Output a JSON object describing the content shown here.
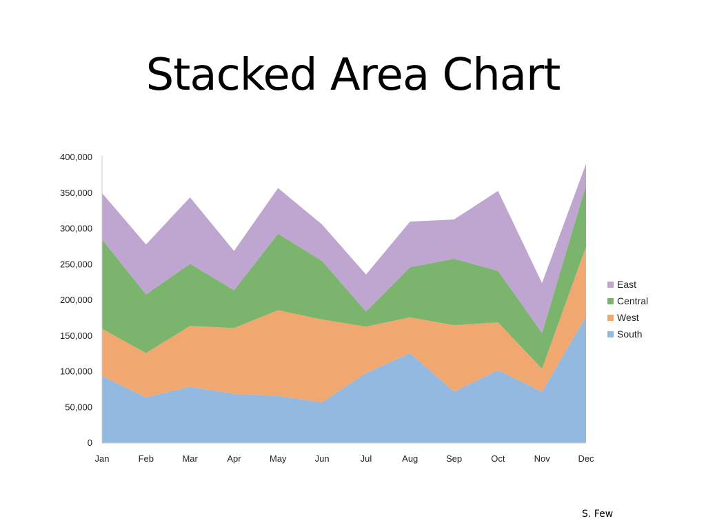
{
  "slide": {
    "title": "Stacked Area Chart",
    "credit": "S. Few"
  },
  "chart_data": {
    "type": "area",
    "stacked": true,
    "categories": [
      "Jan",
      "Feb",
      "Mar",
      "Apr",
      "May",
      "Jun",
      "Jul",
      "Aug",
      "Sep",
      "Oct",
      "Nov",
      "Dec"
    ],
    "series": [
      {
        "name": "South",
        "color": "#93b9e1",
        "values": [
          94000,
          64000,
          79000,
          69000,
          66000,
          57000,
          98000,
          126000,
          72000,
          102000,
          72000,
          177000
        ]
      },
      {
        "name": "West",
        "color": "#f1a870",
        "values": [
          66000,
          62000,
          85000,
          92000,
          120000,
          116000,
          65000,
          50000,
          93000,
          67000,
          32000,
          98000
        ]
      },
      {
        "name": "Central",
        "color": "#7bb46d",
        "values": [
          125000,
          82000,
          87000,
          53000,
          107000,
          82000,
          21000,
          70000,
          93000,
          72000,
          50000,
          86000
        ]
      },
      {
        "name": "East",
        "color": "#bfa6d1",
        "values": [
          65000,
          70000,
          93000,
          55000,
          64000,
          51000,
          52000,
          64000,
          55000,
          112000,
          70000,
          30000
        ]
      }
    ],
    "ylim": [
      0,
      400000
    ],
    "yticks": [
      "0",
      "50,000",
      "100,000",
      "150,000",
      "200,000",
      "250,000",
      "300,000",
      "350,000",
      "400,000"
    ],
    "legend": {
      "placement": "right",
      "order": [
        "East",
        "Central",
        "West",
        "South"
      ]
    },
    "grid": false,
    "xlabel": "",
    "ylabel": ""
  }
}
